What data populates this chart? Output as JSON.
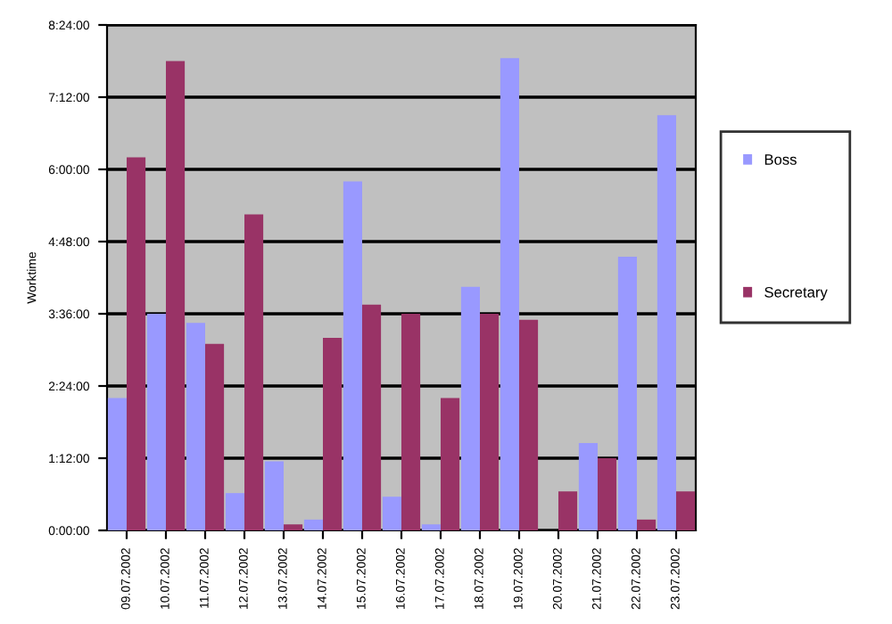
{
  "chart_data": {
    "type": "bar",
    "ylabel": "Worktime",
    "categories": [
      "09.07.2002",
      "10.07.2002",
      "11.07.2002",
      "12.07.2002",
      "13.07.2002",
      "14.07.2002",
      "15.07.2002",
      "16.07.2002",
      "17.07.2002",
      "18.07.2002",
      "19.07.2002",
      "20.07.2002",
      "21.07.2002",
      "22.07.2002",
      "23.07.2002"
    ],
    "series": [
      {
        "name": "Boss",
        "color": "#9999ff",
        "values": [
          2.2,
          3.6,
          3.45,
          0.62,
          1.15,
          0.18,
          5.8,
          0.56,
          0.1,
          4.05,
          7.85,
          0,
          1.45,
          4.55,
          6.9
        ]
      },
      {
        "name": "Secretary",
        "color": "#993366",
        "values": [
          6.2,
          7.8,
          3.1,
          5.25,
          0.1,
          3.2,
          3.75,
          3.6,
          2.2,
          3.6,
          3.5,
          0.65,
          1.2,
          0.18,
          0.65
        ]
      }
    ],
    "ylim": [
      0,
      8.4
    ],
    "yticks": [
      {
        "value": 0,
        "label": "0:00:00"
      },
      {
        "value": 1.2,
        "label": "1:12:00"
      },
      {
        "value": 2.4,
        "label": "2:24:00"
      },
      {
        "value": 3.6,
        "label": "3:36:00"
      },
      {
        "value": 4.8,
        "label": "4:48:00"
      },
      {
        "value": 6,
        "label": "6:00:00"
      },
      {
        "value": 7.2,
        "label": "7:12:00"
      },
      {
        "value": 8.4,
        "label": "8:24:00"
      }
    ],
    "grid": "y",
    "legend": "right"
  }
}
